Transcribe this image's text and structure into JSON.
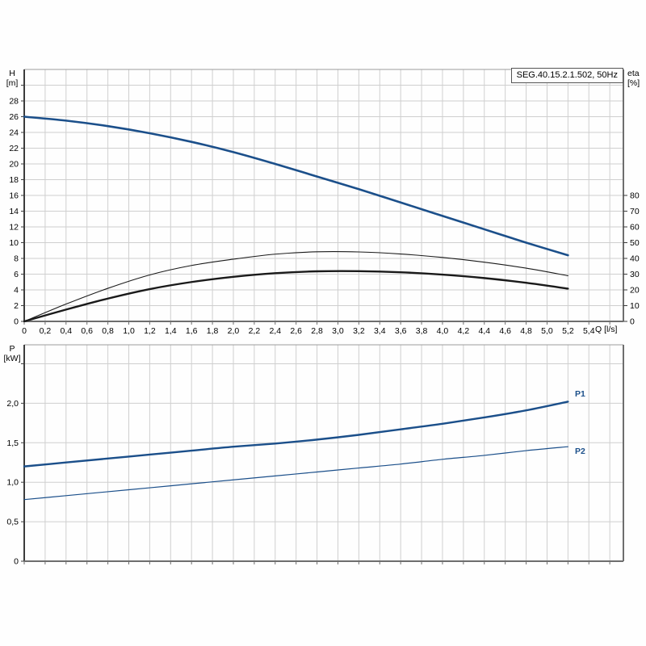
{
  "page": {
    "background": "#fefefe",
    "accent_blue": "#1b4f8a",
    "grid_color": "#cfcfcf",
    "axis_color": "#4a4a4a"
  },
  "title_box": {
    "text": "SEG.40.15.2.1.502, 50Hz"
  },
  "chart_data": [
    {
      "id": "performance",
      "type": "line",
      "title": "SEG.40.15.2.1.502, 50Hz",
      "x_axis": {
        "label": "Q [l/s]",
        "min": 0,
        "max": 5.73,
        "grid_step": 0.2,
        "tick_labels": [
          "0",
          "0,2",
          "0,4",
          "0,6",
          "0,8",
          "1,0",
          "1,2",
          "1,4",
          "1,6",
          "1,8",
          "2,0",
          "2,2",
          "2,4",
          "2,6",
          "2,8",
          "3,0",
          "3,2",
          "3,4",
          "3,6",
          "3,8",
          "4,0",
          "4,2",
          "4,4",
          "4,6",
          "4,8",
          "5,0",
          "5,2",
          "5,4"
        ],
        "tick_values": [
          0,
          0.2,
          0.4,
          0.6,
          0.8,
          1.0,
          1.2,
          1.4,
          1.6,
          1.8,
          2.0,
          2.2,
          2.4,
          2.6,
          2.8,
          3.0,
          3.2,
          3.4,
          3.6,
          3.8,
          4.0,
          4.2,
          4.4,
          4.6,
          4.8,
          5.0,
          5.2,
          5.4
        ]
      },
      "y_left": {
        "label_line1": "H",
        "label_line2": "[m]",
        "min": 0,
        "max": 32,
        "grid_step": 2,
        "tick_labels": [
          "0",
          "2",
          "4",
          "6",
          "8",
          "10",
          "12",
          "14",
          "16",
          "18",
          "20",
          "22",
          "24",
          "26",
          "28"
        ],
        "tick_values": [
          0,
          2,
          4,
          6,
          8,
          10,
          12,
          14,
          16,
          18,
          20,
          22,
          24,
          26,
          28
        ]
      },
      "y_right": {
        "label_line1": "eta",
        "label_line2": "[%]",
        "min": 0,
        "max": 160,
        "grid_step": 10,
        "tick_labels": [
          "0",
          "10",
          "20",
          "30",
          "40",
          "50",
          "60",
          "70",
          "80"
        ],
        "tick_values": [
          0,
          10,
          20,
          30,
          40,
          50,
          60,
          70,
          80
        ]
      },
      "grid": true,
      "legend_position": "none",
      "series": [
        {
          "name": "head-curve",
          "label": "",
          "axis": "left",
          "color": "#1b4f8a",
          "width": 2.6,
          "points": [
            [
              0,
              26.0
            ],
            [
              0.4,
              25.5
            ],
            [
              0.8,
              24.8
            ],
            [
              1.2,
              23.9
            ],
            [
              1.6,
              22.8
            ],
            [
              2.0,
              21.5
            ],
            [
              2.4,
              20.0
            ],
            [
              2.8,
              18.4
            ],
            [
              3.2,
              16.8
            ],
            [
              3.6,
              15.1
            ],
            [
              4.0,
              13.4
            ],
            [
              4.4,
              11.7
            ],
            [
              4.8,
              10.0
            ],
            [
              5.2,
              8.4
            ]
          ]
        },
        {
          "name": "eta-pump-curve",
          "label": "",
          "axis": "right",
          "color": "#1a1a1a",
          "width": 1.1,
          "points": [
            [
              0,
              0
            ],
            [
              0.4,
              11.0
            ],
            [
              0.8,
              21.0
            ],
            [
              1.2,
              29.5
            ],
            [
              1.6,
              35.5
            ],
            [
              2.0,
              39.5
            ],
            [
              2.4,
              42.7
            ],
            [
              2.8,
              44.2
            ],
            [
              3.2,
              44.1
            ],
            [
              3.6,
              42.8
            ],
            [
              4.0,
              40.6
            ],
            [
              4.4,
              37.6
            ],
            [
              4.8,
              33.8
            ],
            [
              5.2,
              29.0
            ]
          ]
        },
        {
          "name": "eta-total-curve",
          "label": "",
          "axis": "right",
          "color": "#1a1a1a",
          "width": 2.4,
          "points": [
            [
              0,
              0
            ],
            [
              0.4,
              7.5
            ],
            [
              0.8,
              14.5
            ],
            [
              1.2,
              20.5
            ],
            [
              1.6,
              25.0
            ],
            [
              2.0,
              28.3
            ],
            [
              2.4,
              30.6
            ],
            [
              2.8,
              31.8
            ],
            [
              3.2,
              31.9
            ],
            [
              3.6,
              31.2
            ],
            [
              4.0,
              29.7
            ],
            [
              4.4,
              27.5
            ],
            [
              4.8,
              24.5
            ],
            [
              5.2,
              20.8
            ]
          ]
        }
      ]
    },
    {
      "id": "power",
      "type": "line",
      "title": "",
      "x_axis": {
        "label": "",
        "min": 0,
        "max": 5.73,
        "grid_step": 0.2,
        "tick_labels": [],
        "tick_values": []
      },
      "y_left": {
        "label_line1": "P",
        "label_line2": "[kW]",
        "min": 0,
        "max": 2.74,
        "grid_step": 0.5,
        "tick_labels": [
          "0",
          "0,5",
          "1,0",
          "1,5",
          "2,0"
        ],
        "tick_values": [
          0,
          0.5,
          1.0,
          1.5,
          2.0
        ]
      },
      "grid": true,
      "legend_position": "right-of-curve",
      "series": [
        {
          "name": "p1-curve",
          "label": "P1",
          "axis": "left",
          "color": "#1b4f8a",
          "width": 2.4,
          "points": [
            [
              0,
              1.2
            ],
            [
              0.4,
              1.25
            ],
            [
              0.8,
              1.3
            ],
            [
              1.2,
              1.35
            ],
            [
              1.6,
              1.4
            ],
            [
              2.0,
              1.45
            ],
            [
              2.4,
              1.49
            ],
            [
              2.8,
              1.54
            ],
            [
              3.2,
              1.6
            ],
            [
              3.6,
              1.67
            ],
            [
              4.0,
              1.74
            ],
            [
              4.4,
              1.82
            ],
            [
              4.8,
              1.91
            ],
            [
              5.2,
              2.02
            ]
          ]
        },
        {
          "name": "p2-curve",
          "label": "P2",
          "axis": "left",
          "color": "#1b4f8a",
          "width": 1.2,
          "points": [
            [
              0,
              0.78
            ],
            [
              0.4,
              0.83
            ],
            [
              0.8,
              0.88
            ],
            [
              1.2,
              0.93
            ],
            [
              1.6,
              0.98
            ],
            [
              2.0,
              1.03
            ],
            [
              2.4,
              1.08
            ],
            [
              2.8,
              1.13
            ],
            [
              3.2,
              1.18
            ],
            [
              3.6,
              1.23
            ],
            [
              4.0,
              1.29
            ],
            [
              4.4,
              1.34
            ],
            [
              4.8,
              1.4
            ],
            [
              5.2,
              1.45
            ]
          ]
        }
      ]
    }
  ]
}
